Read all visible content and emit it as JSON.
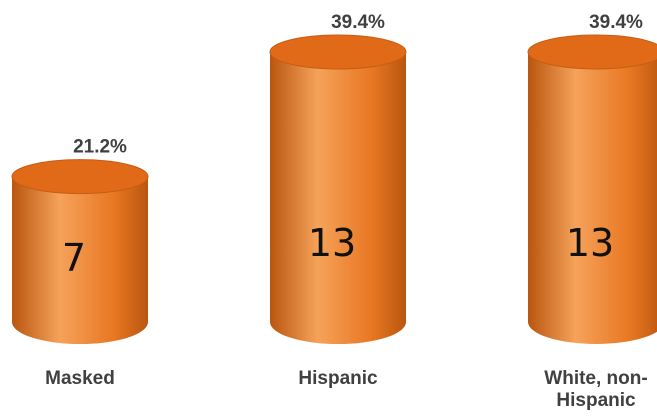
{
  "chart_data": {
    "type": "bar",
    "shape": "cylinder",
    "categories": [
      "Masked",
      "Hispanic",
      "White, non-Hispanic"
    ],
    "category_lines": [
      [
        "Masked"
      ],
      [
        "Hispanic"
      ],
      [
        "White, non-",
        "Hispanic"
      ]
    ],
    "values": [
      7,
      13,
      13
    ],
    "value_labels": [
      "7",
      "13",
      "13"
    ],
    "percent_labels": [
      "21.2%",
      "39.4%",
      "39.4%"
    ],
    "percents": [
      21.2,
      39.4,
      39.4
    ],
    "title": "",
    "xlabel": "",
    "ylabel": "",
    "ylim": [
      0,
      13
    ],
    "grid": false,
    "legend": "none",
    "colors": {
      "bar_body": "#e87722",
      "bar_light": "#f5a25a",
      "bar_dark": "#b9560f",
      "bar_top": "#e06a18",
      "bar_top_edge": "#c85c12",
      "text": "#404040"
    }
  }
}
